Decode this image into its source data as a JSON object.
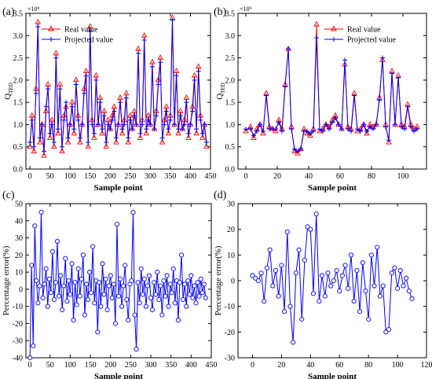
{
  "chart_data": [
    {
      "panel_label": "(a)",
      "type": "line",
      "xlabel": "Sample point",
      "ylabel": "Q",
      "ylabel_sub": "TED",
      "multiplier": "×10⁹",
      "xlim": [
        -10,
        450
      ],
      "ylim": [
        0.0,
        3.5
      ],
      "xticks": [
        0,
        50,
        100,
        150,
        200,
        250,
        300,
        350,
        400,
        450
      ],
      "yticks": [
        0.0,
        0.5,
        1.0,
        1.5,
        2.0,
        2.5,
        3.0,
        3.5
      ],
      "legend_position": "top-left",
      "colors": {
        "real": "#ff0000",
        "projected": "#0000ff"
      },
      "series": [
        {
          "name": "Real value",
          "marker": "triangle",
          "x": [
            0,
            5,
            10,
            15,
            20,
            25,
            30,
            35,
            40,
            45,
            50,
            55,
            60,
            65,
            70,
            75,
            80,
            85,
            90,
            95,
            100,
            105,
            110,
            115,
            120,
            125,
            130,
            135,
            140,
            145,
            150,
            155,
            160,
            165,
            170,
            175,
            180,
            185,
            190,
            195,
            200,
            205,
            210,
            215,
            220,
            225,
            230,
            235,
            240,
            245,
            250,
            255,
            260,
            265,
            270,
            275,
            280,
            285,
            290,
            295,
            300,
            305,
            310,
            315,
            320,
            325,
            330,
            335,
            340,
            345,
            350,
            355,
            360,
            365,
            370,
            375,
            380,
            385,
            390,
            395,
            400,
            405,
            410,
            415,
            420,
            425,
            430,
            435,
            440
          ],
          "values": [
            0.5,
            1.2,
            0.4,
            1.8,
            3.3,
            0.6,
            1.0,
            0.3,
            1.3,
            1.9,
            0.7,
            1.1,
            0.5,
            2.6,
            0.8,
            1.9,
            0.4,
            1.2,
            1.4,
            0.6,
            1.0,
            1.5,
            0.8,
            2.0,
            1.2,
            0.6,
            1.0,
            1.8,
            2.2,
            0.5,
            3.2,
            1.1,
            0.7,
            2.1,
            1.0,
            1.6,
            0.8,
            1.3,
            0.5,
            1.1,
            0.9,
            1.2,
            1.4,
            0.6,
            1.0,
            1.6,
            0.8,
            1.1,
            1.7,
            0.6,
            1.2,
            0.9,
            1.3,
            1.0,
            2.7,
            0.7,
            1.1,
            3.0,
            0.8,
            1.2,
            1.0,
            2.4,
            0.9,
            1.3,
            2.0,
            2.5,
            0.6,
            1.1,
            1.4,
            0.8,
            1.2,
            3.4,
            1.0,
            2.2,
            0.8,
            1.3,
            0.9,
            1.1,
            1.6,
            0.7,
            1.0,
            1.4,
            2.1,
            0.8,
            2.3,
            1.2,
            0.7,
            1.0,
            0.5
          ]
        },
        {
          "name": "Projected value",
          "marker": "plus",
          "x": [
            0,
            5,
            10,
            15,
            20,
            25,
            30,
            35,
            40,
            45,
            50,
            55,
            60,
            65,
            70,
            75,
            80,
            85,
            90,
            95,
            100,
            105,
            110,
            115,
            120,
            125,
            130,
            135,
            140,
            145,
            150,
            155,
            160,
            165,
            170,
            175,
            180,
            185,
            190,
            195,
            200,
            205,
            210,
            215,
            220,
            225,
            230,
            235,
            240,
            245,
            250,
            255,
            260,
            265,
            270,
            275,
            280,
            285,
            290,
            295,
            300,
            305,
            310,
            315,
            320,
            325,
            330,
            335,
            340,
            345,
            350,
            355,
            360,
            365,
            370,
            375,
            380,
            385,
            390,
            395,
            400,
            405,
            410,
            415,
            420,
            425,
            430,
            435,
            440
          ],
          "values": [
            0.6,
            1.1,
            0.5,
            1.7,
            3.2,
            0.7,
            1.0,
            0.4,
            1.4,
            1.8,
            0.8,
            1.0,
            0.6,
            2.5,
            0.9,
            1.8,
            0.5,
            1.1,
            1.5,
            0.7,
            1.0,
            1.4,
            0.9,
            1.9,
            1.1,
            0.7,
            1.0,
            1.7,
            2.1,
            0.6,
            3.1,
            1.0,
            0.8,
            2.0,
            1.0,
            1.5,
            0.9,
            1.2,
            0.6,
            1.0,
            0.9,
            1.1,
            1.3,
            0.7,
            1.0,
            1.5,
            0.9,
            1.0,
            1.6,
            0.7,
            1.1,
            0.9,
            1.2,
            1.0,
            2.6,
            0.8,
            1.0,
            2.9,
            0.9,
            1.1,
            1.0,
            2.3,
            0.9,
            1.2,
            1.9,
            2.4,
            0.7,
            1.0,
            1.3,
            0.9,
            1.1,
            3.35,
            1.0,
            2.1,
            0.9,
            1.2,
            0.9,
            1.0,
            1.5,
            0.8,
            1.0,
            1.3,
            2.0,
            0.9,
            2.2,
            1.1,
            0.8,
            1.0,
            0.6
          ]
        }
      ]
    },
    {
      "panel_label": "(b)",
      "type": "line",
      "xlabel": "Sample point",
      "ylabel": "Q",
      "ylabel_sub": "TED",
      "multiplier": "×10⁹",
      "xlim": [
        -5,
        115
      ],
      "ylim": [
        0.0,
        3.5
      ],
      "xticks": [
        0,
        20,
        40,
        60,
        80,
        100
      ],
      "yticks": [
        0.0,
        0.5,
        1.0,
        1.5,
        2.0,
        2.5,
        3.0,
        3.5
      ],
      "legend_position": "top-right",
      "colors": {
        "real": "#ff0000",
        "projected": "#0000ff"
      },
      "series": [
        {
          "name": "Real value",
          "marker": "triangle",
          "x": [
            0,
            3,
            5,
            7,
            9,
            11,
            13,
            15,
            17,
            19,
            21,
            23,
            25,
            27,
            29,
            31,
            33,
            35,
            37,
            39,
            41,
            43,
            45,
            47,
            49,
            51,
            53,
            55,
            57,
            59,
            61,
            63,
            65,
            67,
            69,
            71,
            73,
            75,
            77,
            79,
            81,
            83,
            85,
            87,
            89,
            91,
            93,
            95,
            97,
            99,
            101,
            103,
            105,
            107,
            109
          ],
          "values": [
            0.85,
            0.95,
            0.7,
            0.9,
            1.0,
            0.8,
            1.7,
            0.95,
            0.9,
            0.85,
            1.1,
            0.9,
            1.9,
            2.7,
            0.95,
            0.4,
            0.35,
            0.45,
            0.9,
            0.8,
            0.75,
            0.9,
            3.25,
            0.85,
            0.9,
            1.0,
            0.95,
            1.1,
            1.2,
            1.0,
            0.9,
            2.35,
            0.95,
            0.9,
            1.7,
            0.85,
            0.9,
            1.0,
            0.8,
            1.0,
            0.95,
            1.0,
            1.6,
            2.45,
            1.0,
            0.6,
            2.2,
            1.0,
            2.1,
            1.0,
            0.95,
            1.45,
            1.0,
            0.9,
            0.95
          ]
        },
        {
          "name": "Projected value",
          "marker": "plus",
          "x": [
            0,
            3,
            5,
            7,
            9,
            11,
            13,
            15,
            17,
            19,
            21,
            23,
            25,
            27,
            29,
            31,
            33,
            35,
            37,
            39,
            41,
            43,
            45,
            47,
            49,
            51,
            53,
            55,
            57,
            59,
            61,
            63,
            65,
            67,
            69,
            71,
            73,
            75,
            77,
            79,
            81,
            83,
            85,
            87,
            89,
            91,
            93,
            95,
            97,
            99,
            101,
            103,
            105,
            107,
            109
          ],
          "values": [
            0.9,
            0.9,
            0.75,
            0.85,
            1.0,
            0.85,
            1.65,
            0.9,
            0.9,
            0.9,
            1.05,
            0.85,
            1.85,
            2.7,
            0.9,
            0.45,
            0.4,
            0.45,
            0.85,
            0.85,
            0.8,
            0.85,
            2.95,
            0.9,
            0.85,
            1.0,
            0.9,
            1.05,
            1.15,
            1.0,
            0.9,
            2.45,
            0.9,
            0.85,
            1.65,
            0.9,
            0.85,
            1.0,
            0.85,
            0.95,
            0.9,
            1.0,
            1.55,
            2.5,
            0.95,
            0.65,
            2.15,
            1.0,
            2.05,
            0.95,
            0.9,
            1.4,
            0.95,
            0.85,
            0.9
          ]
        }
      ]
    },
    {
      "panel_label": "(c)",
      "type": "line",
      "xlabel": "Sample point",
      "ylabel": "Percentage error(%)",
      "xlim": [
        -10,
        450
      ],
      "ylim": [
        -40,
        50
      ],
      "xticks": [
        0,
        50,
        100,
        150,
        200,
        250,
        300,
        350,
        400,
        450
      ],
      "yticks": [
        -40,
        -30,
        -20,
        -10,
        0,
        10,
        20,
        30,
        40,
        50
      ],
      "colors": {
        "line": "#0000ff"
      },
      "series": [
        {
          "marker": "circle",
          "x": [
            0,
            4,
            8,
            12,
            16,
            20,
            24,
            28,
            32,
            36,
            40,
            44,
            48,
            52,
            56,
            60,
            64,
            68,
            72,
            76,
            80,
            84,
            88,
            92,
            96,
            100,
            104,
            108,
            112,
            116,
            120,
            124,
            128,
            132,
            136,
            140,
            144,
            148,
            152,
            156,
            160,
            164,
            168,
            172,
            176,
            180,
            184,
            188,
            192,
            196,
            200,
            204,
            208,
            212,
            216,
            220,
            224,
            228,
            232,
            236,
            240,
            244,
            248,
            252,
            256,
            260,
            264,
            268,
            272,
            276,
            280,
            284,
            288,
            292,
            296,
            300,
            304,
            308,
            312,
            316,
            320,
            324,
            328,
            332,
            336,
            340,
            344,
            348,
            352,
            356,
            360,
            364,
            368,
            372,
            376,
            380,
            384,
            388,
            392,
            396,
            400,
            404,
            408,
            412,
            416,
            420,
            424,
            428,
            432,
            436
          ],
          "values": [
            -40,
            14,
            -33,
            37,
            5,
            -8,
            2,
            45,
            -5,
            3,
            12,
            -10,
            6,
            -2,
            22,
            -6,
            4,
            28,
            -4,
            8,
            -12,
            2,
            18,
            -7,
            5,
            -3,
            15,
            -18,
            4,
            -9,
            12,
            -4,
            6,
            20,
            -15,
            3,
            -6,
            10,
            -2,
            25,
            -8,
            5,
            -25,
            4,
            -10,
            15,
            -3,
            6,
            -12,
            2,
            8,
            -5,
            3,
            -20,
            38,
            -4,
            6,
            -10,
            2,
            14,
            -6,
            -18,
            3,
            5,
            45,
            -15,
            -35,
            4,
            -8,
            12,
            -3,
            6,
            -10,
            2,
            8,
            -5,
            -12,
            4,
            -3,
            10,
            -6,
            2,
            -15,
            5,
            -4,
            8,
            -10,
            3,
            -2,
            12,
            -8,
            5,
            -18,
            4,
            20,
            -6,
            3,
            -10,
            5,
            -3,
            8,
            -5,
            2,
            -8,
            4,
            -4,
            6,
            -2,
            3,
            -5
          ]
        }
      ]
    },
    {
      "panel_label": "(d)",
      "type": "line",
      "xlabel": "Sample point",
      "ylabel": "Percentage error(%)",
      "xlim": [
        -10,
        120
      ],
      "ylim": [
        -30,
        30
      ],
      "xticks": [
        0,
        20,
        40,
        60,
        80,
        100,
        120
      ],
      "yticks": [
        -30,
        -20,
        -10,
        0,
        10,
        20,
        30
      ],
      "colors": {
        "line": "#0000ff"
      },
      "series": [
        {
          "marker": "circle",
          "x": [
            0,
            2,
            4,
            6,
            8,
            10,
            12,
            14,
            16,
            18,
            20,
            22,
            24,
            26,
            28,
            30,
            32,
            34,
            36,
            38,
            40,
            42,
            44,
            46,
            48,
            50,
            52,
            54,
            56,
            58,
            60,
            62,
            64,
            66,
            68,
            70,
            72,
            74,
            76,
            78,
            80,
            82,
            84,
            86,
            88,
            90,
            92,
            94,
            96,
            98,
            100,
            102,
            104,
            106,
            108,
            110
          ],
          "values": [
            2,
            1,
            0,
            3,
            -8,
            5,
            12,
            -2,
            4,
            -6,
            6,
            -12,
            19,
            -10,
            -24,
            3,
            12,
            -15,
            8,
            21,
            20,
            -5,
            26,
            -8,
            2,
            -6,
            3,
            -2,
            0,
            4,
            -4,
            2,
            6,
            -3,
            10,
            -8,
            4,
            -12,
            7,
            -4,
            -15,
            10,
            -2,
            13,
            -6,
            -2,
            -20,
            -19,
            3,
            5,
            -3,
            4,
            -2,
            1,
            -4,
            -7
          ]
        }
      ]
    }
  ]
}
